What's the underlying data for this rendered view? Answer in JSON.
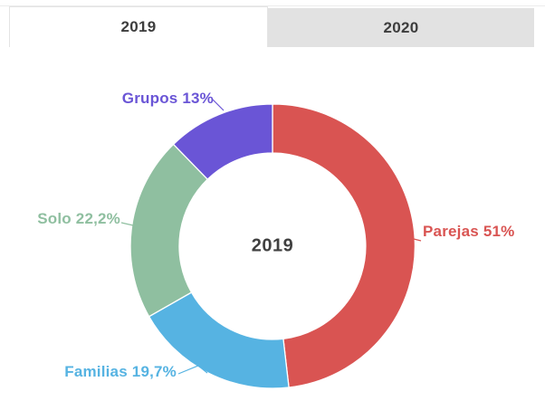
{
  "tabs": [
    {
      "label": "2019",
      "active": true
    },
    {
      "label": "2020",
      "active": false
    }
  ],
  "colors": {
    "tab_inactive_bg": "#e2e2e2",
    "tab_border": "#e4e4e4",
    "tab_text": "#3d3d3d",
    "center_text": "#404040"
  },
  "chart_data": {
    "type": "pie",
    "donut": true,
    "center_label": "2019",
    "legend_position": "labeled-callouts",
    "start_angle_deg": 0,
    "slices": [
      {
        "label": "Parejas",
        "value": 51,
        "percent_text": "51%",
        "display": "Parejas 51%",
        "color": "#d95452"
      },
      {
        "label": "Familias",
        "value": 19.7,
        "percent_text": "19,7%",
        "display": "Familias 19,7%",
        "color": "#56b3e2"
      },
      {
        "label": "Solo",
        "value": 22.2,
        "percent_text": "22,2%",
        "display": "Solo 22,2%",
        "color": "#8fbfa0"
      },
      {
        "label": "Grupos",
        "value": 13,
        "percent_text": "13%",
        "display": "Grupos 13%",
        "color": "#6a55d6"
      }
    ]
  }
}
